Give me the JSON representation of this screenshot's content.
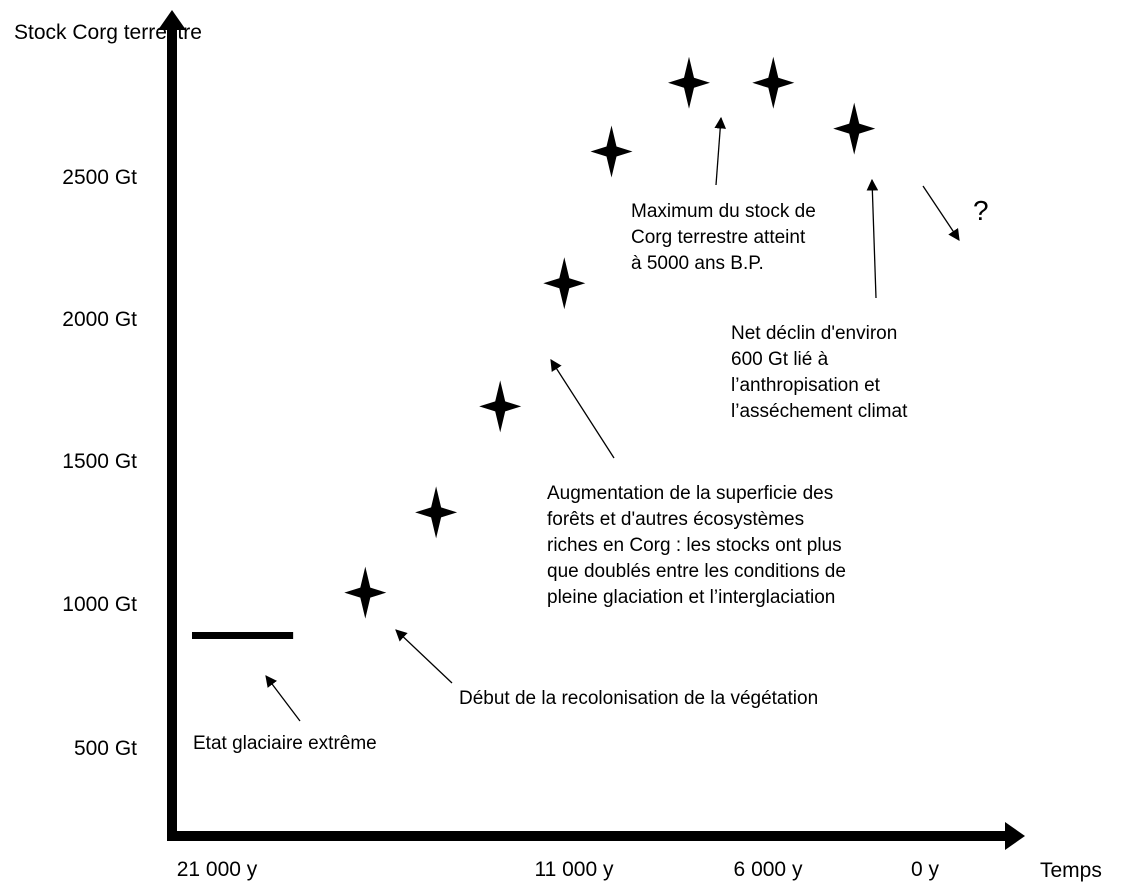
{
  "chart_data": {
    "type": "scatter",
    "ylabel": "Stock Corg terrestre",
    "xlabel": "Temps",
    "y_ticks": [
      "2500 Gt",
      "2000 Gt",
      "1500 Gt",
      "1000 Gt",
      "500 Gt"
    ],
    "x_ticks": [
      "21 000 y",
      "11 000 y",
      "6 000 y",
      "0 y"
    ],
    "ylim": [
      250,
      2800
    ],
    "glacial_level": {
      "value_gt": 850,
      "x_from_years_bp": 21000,
      "x_to_years_bp": 18000
    },
    "points": [
      {
        "years_bp": 16600,
        "value_gt": 1000
      },
      {
        "years_bp": 14500,
        "value_gt": 1280
      },
      {
        "years_bp": 12600,
        "value_gt": 1650
      },
      {
        "years_bp": 10700,
        "value_gt": 2080
      },
      {
        "years_bp": 9300,
        "value_gt": 2540
      },
      {
        "years_bp": 7000,
        "value_gt": 2780
      },
      {
        "years_bp": 4500,
        "value_gt": 2780
      },
      {
        "years_bp": 2100,
        "value_gt": 2620
      }
    ],
    "annotations": [
      {
        "id": "glacial",
        "text": "Etat glaciaire extrême"
      },
      {
        "id": "recolonisation",
        "text": "Début de la recolonisation de la végétation"
      },
      {
        "id": "augmentation",
        "lines": [
          "Augmentation de la superficie des",
          "forêts et d'autres écosystèmes",
          "riches en Corg : les stocks ont plus",
          "que doublés entre les conditions de",
          "pleine glaciation et l’interglaciation"
        ]
      },
      {
        "id": "maximum",
        "lines": [
          "Maximum du stock de",
          "Corg terrestre atteint",
          "à 5000 ans B.P."
        ]
      },
      {
        "id": "declin",
        "lines": [
          "Net déclin d'environ",
          "600 Gt lié à",
          "l’anthropisation et",
          "l’asséchement climat"
        ]
      },
      {
        "id": "future",
        "text": "?"
      }
    ]
  }
}
